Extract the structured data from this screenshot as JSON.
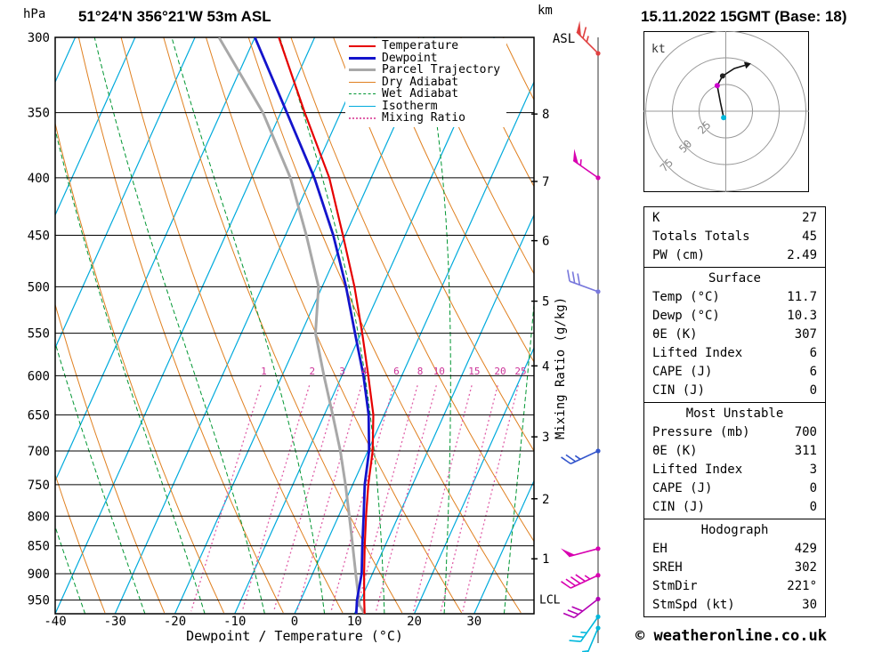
{
  "header": {
    "station": "51°24'N 356°21'W 53m ASL",
    "datetime": "15.11.2022 15GMT (Base: 18)",
    "left_axis_unit": "hPa",
    "right_axis_unit_line1": "km",
    "right_axis_unit_line2": "ASL",
    "x_axis_label": "Dewpoint / Temperature (°C)",
    "right_inner_axis_label": "Mixing Ratio (g/kg)",
    "copyright": "© weatheronline.co.uk"
  },
  "legend": [
    {
      "label": "Temperature",
      "color": "#e60000",
      "style": "solid",
      "width": 2
    },
    {
      "label": "Dewpoint",
      "color": "#1414cc",
      "style": "solid",
      "width": 3
    },
    {
      "label": "Parcel Trajectory",
      "color": "#a8a8a8",
      "style": "solid",
      "width": 3
    },
    {
      "label": "Dry Adiabat",
      "color": "#e08020",
      "style": "solid",
      "width": 1
    },
    {
      "label": "Wet Adiabat",
      "color": "#009632",
      "style": "dashed",
      "width": 1
    },
    {
      "label": "Isotherm",
      "color": "#00aadc",
      "style": "solid",
      "width": 1
    },
    {
      "label": "Mixing Ratio",
      "color": "#e060a8",
      "style": "dotted",
      "width": 2
    }
  ],
  "axes": {
    "pressure_ticks": [
      300,
      350,
      400,
      450,
      500,
      550,
      600,
      650,
      700,
      750,
      800,
      850,
      900,
      950
    ],
    "temperature_ticks": [
      -40,
      -30,
      -20,
      -10,
      0,
      10,
      20,
      30
    ],
    "km_levels": [
      {
        "km": 8,
        "p": 351
      },
      {
        "km": 7,
        "p": 403
      },
      {
        "km": 6,
        "p": 455
      },
      {
        "km": 5,
        "p": 515
      },
      {
        "km": 4,
        "p": 588
      },
      {
        "km": 3,
        "p": 680
      },
      {
        "km": 2,
        "p": 772
      },
      {
        "km": 1,
        "p": 873
      }
    ],
    "lcl": {
      "label": "LCL",
      "p": 950
    },
    "mixing_ratio_values": [
      1,
      2,
      3,
      4,
      6,
      8,
      10,
      15,
      20,
      25
    ]
  },
  "chart_data": {
    "type": "skewt",
    "pressure_range": [
      300,
      977
    ],
    "temperature_range": [
      -40,
      40
    ],
    "temperature_profile": [
      [
        977,
        11.7
      ],
      [
        950,
        10.6
      ],
      [
        900,
        8.6
      ],
      [
        850,
        6.6
      ],
      [
        800,
        4.6
      ],
      [
        750,
        2.6
      ],
      [
        700,
        0.8
      ],
      [
        650,
        -1.8
      ],
      [
        600,
        -5.6
      ],
      [
        550,
        -9.8
      ],
      [
        500,
        -14.6
      ],
      [
        450,
        -20.4
      ],
      [
        400,
        -27.0
      ],
      [
        350,
        -36.0
      ],
      [
        300,
        -46.0
      ]
    ],
    "dewpoint_profile": [
      [
        977,
        10.3
      ],
      [
        950,
        9.4
      ],
      [
        900,
        8.2
      ],
      [
        850,
        6.2
      ],
      [
        800,
        4.2
      ],
      [
        750,
        2.0
      ],
      [
        700,
        0.2
      ],
      [
        650,
        -2.6
      ],
      [
        600,
        -6.4
      ],
      [
        550,
        -11.0
      ],
      [
        500,
        -16.0
      ],
      [
        450,
        -22.0
      ],
      [
        400,
        -29.5
      ],
      [
        350,
        -39.0
      ],
      [
        300,
        -50.0
      ]
    ],
    "parcel_profile": [
      [
        977,
        11.7
      ],
      [
        960,
        10.2
      ],
      [
        900,
        7.2
      ],
      [
        850,
        4.6
      ],
      [
        800,
        1.8
      ],
      [
        750,
        -1.2
      ],
      [
        700,
        -4.6
      ],
      [
        650,
        -8.6
      ],
      [
        600,
        -13.0
      ],
      [
        550,
        -17.6
      ],
      [
        500,
        -20.6
      ],
      [
        450,
        -26.5
      ],
      [
        400,
        -33.5
      ],
      [
        350,
        -43.0
      ],
      [
        300,
        -56.0
      ]
    ],
    "background": {
      "isotherms": {
        "min": -80,
        "max": 40,
        "step": 10
      },
      "dry_adiabats": {
        "min": -40,
        "max": 110,
        "step": 10
      },
      "wet_adiabats": {
        "min": -45,
        "max": 65,
        "step": 10
      },
      "mixing_ratio_lines": [
        1,
        2,
        3,
        4,
        6,
        8,
        10,
        15,
        20,
        25
      ]
    }
  },
  "wind_barbs": [
    {
      "p": 310,
      "dir": 315,
      "speed": 65,
      "color": "#e04040"
    },
    {
      "p": 400,
      "dir": 305,
      "speed": 55,
      "color": "#d800b0"
    },
    {
      "p": 505,
      "dir": 290,
      "speed": 30,
      "color": "#7878dc"
    },
    {
      "p": 700,
      "dir": 245,
      "speed": 25,
      "color": "#3355cc"
    },
    {
      "p": 855,
      "dir": 255,
      "speed": 50,
      "color": "#d800b0"
    },
    {
      "p": 903,
      "dir": 245,
      "speed": 45,
      "color": "#d800b0"
    },
    {
      "p": 948,
      "dir": 232,
      "speed": 30,
      "color": "#b400b4"
    },
    {
      "p": 983,
      "dir": 215,
      "speed": 25,
      "color": "#00b8dc"
    },
    {
      "p": 1006,
      "dir": 203,
      "speed": 18,
      "color": "#00b8dc"
    }
  ],
  "hodograph": {
    "unit_label": "kt",
    "rings": [
      25,
      50,
      75
    ],
    "trace_kt": [
      [
        -2,
        -6
      ],
      [
        -5,
        8
      ],
      [
        -8,
        24
      ],
      [
        -3,
        33
      ],
      [
        8,
        40
      ],
      [
        18,
        43
      ]
    ],
    "markers": [
      {
        "u": -8,
        "v": 24,
        "color": "#cc00cc"
      },
      {
        "u": -2,
        "v": -6,
        "color": "#00b8dc"
      },
      {
        "u": -3,
        "v": 33,
        "color": "#222222"
      }
    ]
  },
  "table": {
    "sections": [
      {
        "title": null,
        "rows": [
          [
            "K",
            "27"
          ],
          [
            "Totals Totals",
            "45"
          ],
          [
            "PW (cm)",
            "2.49"
          ]
        ]
      },
      {
        "title": "Surface",
        "rows": [
          [
            "Temp (°C)",
            "11.7"
          ],
          [
            "Dewp (°C)",
            "10.3"
          ],
          [
            "θE (K)",
            "307"
          ],
          [
            "Lifted Index",
            "6"
          ],
          [
            "CAPE (J)",
            "6"
          ],
          [
            "CIN (J)",
            "0"
          ]
        ]
      },
      {
        "title": "Most Unstable",
        "rows": [
          [
            "Pressure (mb)",
            "700"
          ],
          [
            "θE (K)",
            "311"
          ],
          [
            "Lifted Index",
            "3"
          ],
          [
            "CAPE (J)",
            "0"
          ],
          [
            "CIN (J)",
            "0"
          ]
        ]
      },
      {
        "title": "Hodograph",
        "rows": [
          [
            "EH",
            "429"
          ],
          [
            "SREH",
            "302"
          ],
          [
            "StmDir",
            "221°"
          ],
          [
            "StmSpd (kt)",
            "30"
          ]
        ]
      }
    ]
  },
  "colors": {
    "temperature": "#e60000",
    "dewpoint": "#1414cc",
    "parcel": "#a8a8a8",
    "dry_adiabat": "#e08020",
    "wet_adiabat": "#009632",
    "isotherm": "#00aadc",
    "mixing_ratio": "#e060a8",
    "mixing_label": "#cc3399",
    "grid": "#000000"
  }
}
